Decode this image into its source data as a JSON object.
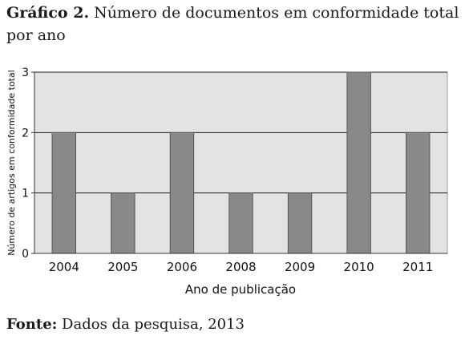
{
  "caption": {
    "label": "Gráfico 2.",
    "text": "Número de documentos em conformidade total por ano"
  },
  "source": {
    "label": "Fonte:",
    "text": "Dados da pesquisa, 2013"
  },
  "chart_data": {
    "type": "bar",
    "categories": [
      "2004",
      "2005",
      "2006",
      "2008",
      "2009",
      "2010",
      "2011"
    ],
    "values": [
      2,
      1,
      2,
      1,
      1,
      3,
      2
    ],
    "xlabel": "Ano de publicação",
    "ylabel": "Número de artigos em conformidade total",
    "ylim": [
      0,
      3
    ],
    "yticks": [
      "0",
      "1",
      "2",
      "3"
    ],
    "grid": true,
    "legend": "none",
    "colors": {
      "bar": "#898989",
      "plot_bg": "#e3e3e3",
      "grid": "#1a1a1a"
    }
  }
}
